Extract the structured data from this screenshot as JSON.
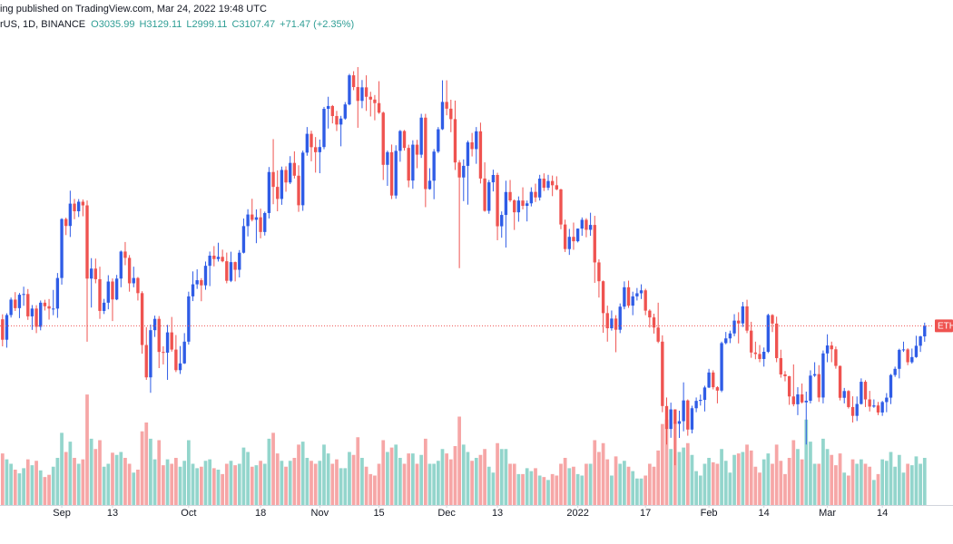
{
  "chart_data": {
    "type": "candlestick",
    "title": "ing published on TradingView.com, Mar 24, 2022 19:48 UTC",
    "symbol": "rUS, 1D, BINANCE",
    "ohlc_labels": [
      "O3035.99",
      "H3129.11",
      "L2999.11",
      "C3107.47",
      "+71.47 (+2.35%)"
    ],
    "price_label": "ETH",
    "up_color": "#2f5ce6",
    "down_color": "#ef5350",
    "volume_up_color": "#93d5cc",
    "volume_down_color": "#f6a6a6",
    "price_line_color": "#ef5350",
    "xlim": [
      -0.6,
      224.7
    ],
    "ylim": [
      1870,
      5090
    ],
    "vlim": [
      0,
      1600
    ],
    "xticks": [
      {
        "value": 14,
        "label": "Sep"
      },
      {
        "value": 26,
        "label": "13"
      },
      {
        "value": 44,
        "label": "Oct"
      },
      {
        "value": 61,
        "label": "18"
      },
      {
        "value": 75,
        "label": "Nov"
      },
      {
        "value": 89,
        "label": "15"
      },
      {
        "value": 105,
        "label": "Dec"
      },
      {
        "value": 117,
        "label": "13"
      },
      {
        "value": 136,
        "label": "2022"
      },
      {
        "value": 152,
        "label": "17"
      },
      {
        "value": 167,
        "label": "Feb"
      },
      {
        "value": 180,
        "label": "14"
      },
      {
        "value": 195,
        "label": "Mar"
      },
      {
        "value": 208,
        "label": "14"
      }
    ],
    "open": [
      3152,
      3013,
      3181,
      3286,
      3228,
      3319,
      3324,
      3172,
      3225,
      3101,
      3265,
      3241,
      3225,
      3225,
      3433,
      3834,
      3787,
      3939,
      3887,
      3952,
      3927,
      3429,
      3497,
      3425,
      3209,
      3265,
      3409,
      3287,
      3429,
      3613,
      3570,
      3397,
      3433,
      3330,
      2977,
      2757,
      3078,
      3155,
      2930,
      2925,
      3063,
      2946,
      2806,
      2852,
      3000,
      3308,
      3390,
      3418,
      3383,
      3516,
      3585,
      3562,
      3577,
      3547,
      3414,
      3541,
      3489,
      3605,
      3786,
      3865,
      3829,
      3846,
      3746,
      3875,
      4154,
      4053,
      3971,
      4168,
      4083,
      4216,
      4129,
      3928,
      4286,
      4414,
      4323,
      4289,
      4324,
      4584,
      4603,
      4535,
      4477,
      4518,
      4614,
      4812,
      4732,
      4638,
      4730,
      4666,
      4647,
      4623,
      4558,
      4203,
      4289,
      3994,
      4298,
      4433,
      4318,
      4096,
      4340,
      4272,
      4524,
      4038,
      4095,
      4293,
      4445,
      4631,
      4585,
      4514,
      4219,
      4117,
      4196,
      4356,
      4310,
      4431,
      4110,
      3890,
      4084,
      4134,
      3785,
      3862,
      4018,
      3961,
      3880,
      3960,
      3924,
      3941,
      4019,
      3981,
      4109,
      4047,
      4093,
      4064,
      4036,
      3797,
      3630,
      3713,
      3683,
      3769,
      3829,
      3761,
      3794,
      3539,
      3411,
      3194,
      3091,
      3157,
      3081,
      3238,
      3370,
      3245,
      3308,
      3329,
      3349,
      3211,
      3165,
      3096,
      3000,
      2562,
      2406,
      2539,
      2441,
      2459,
      2600,
      2402,
      2547,
      2597,
      2604,
      2688,
      2790,
      2690,
      2667,
      2990,
      3022,
      3056,
      3143,
      3124,
      3240,
      3075,
      2926,
      2916,
      2882,
      2931,
      3181,
      3123,
      2888,
      2777,
      2765,
      2627,
      2574,
      2641,
      2587,
      2598,
      2769,
      2779,
      2620,
      2920,
      2974,
      2948,
      2835,
      2618,
      2664,
      2555,
      2495,
      2576,
      2727,
      2607,
      2558,
      2566,
      2518,
      2589,
      2619,
      2773,
      2815,
      2944,
      2947,
      2860,
      2895,
      2972,
      3035.99
    ],
    "high": [
      3186,
      3193,
      3300,
      3337,
      3331,
      3374,
      3358,
      3249,
      3248,
      3280,
      3285,
      3290,
      3352,
      3467,
      3840,
      3844,
      4027,
      3971,
      3970,
      3967,
      3960,
      3568,
      3565,
      3510,
      3291,
      3452,
      3430,
      3454,
      3620,
      3678,
      3589,
      3510,
      3440,
      3343,
      3099,
      3116,
      3177,
      3174,
      2968,
      3114,
      3168,
      3045,
      2970,
      3058,
      3340,
      3478,
      3492,
      3432,
      3545,
      3613,
      3650,
      3673,
      3626,
      3606,
      3612,
      3545,
      3623,
      3838,
      3901,
      3972,
      3900,
      3905,
      3885,
      4188,
      4378,
      4165,
      4191,
      4193,
      4262,
      4295,
      4200,
      4300,
      4460,
      4435,
      4392,
      4375,
      4597,
      4666,
      4610,
      4570,
      4536,
      4630,
      4822,
      4840,
      4868,
      4780,
      4812,
      4700,
      4678,
      4772,
      4565,
      4300,
      4341,
      4336,
      4440,
      4440,
      4340,
      4370,
      4373,
      4550,
      4550,
      4180,
      4310,
      4460,
      4778,
      4778,
      4646,
      4640,
      4235,
      4240,
      4368,
      4420,
      4460,
      4490,
      4220,
      4100,
      4170,
      4149,
      3886,
      4095,
      4100,
      3968,
      3988,
      4050,
      3960,
      4050,
      4075,
      4135,
      4145,
      4135,
      4130,
      4125,
      4040,
      3830,
      3767,
      3810,
      3770,
      3845,
      3840,
      3877,
      3856,
      3560,
      3416,
      3245,
      3212,
      3180,
      3260,
      3410,
      3415,
      3340,
      3365,
      3390,
      3360,
      3220,
      3190,
      3265,
      3043,
      2620,
      2585,
      2540,
      2530,
      2723,
      2607,
      2564,
      2620,
      2640,
      2700,
      2815,
      2805,
      2697,
      3000,
      3066,
      3075,
      3187,
      3200,
      3270,
      3285,
      3135,
      3000,
      2977,
      2960,
      3190,
      3187,
      3170,
      2945,
      2800,
      2767,
      2845,
      2690,
      2715,
      2660,
      2805,
      2860,
      2840,
      2940,
      3050,
      3000,
      2967,
      2837,
      2685,
      2670,
      2628,
      2627,
      2750,
      2738,
      2665,
      2607,
      2590,
      2597,
      2650,
      2780,
      2830,
      2952,
      3000,
      2955,
      2953,
      3040,
      3040,
      3129.11
    ],
    "low": [
      2968,
      2959,
      3164,
      3209,
      3160,
      3244,
      3148,
      3080,
      3058,
      3077,
      3212,
      3150,
      3180,
      3162,
      3388,
      3725,
      3712,
      3833,
      3848,
      3853,
      3000,
      3232,
      3397,
      3155,
      3188,
      3220,
      3140,
      3282,
      3370,
      3520,
      3340,
      3370,
      3280,
      2918,
      2740,
      2652,
      3032,
      2820,
      2845,
      2740,
      2932,
      2793,
      2780,
      2848,
      2980,
      3276,
      3359,
      3275,
      3353,
      3378,
      3512,
      3545,
      3540,
      3397,
      3405,
      3410,
      3437,
      3600,
      3716,
      3818,
      3670,
      3703,
      3722,
      3838,
      3935,
      3887,
      3931,
      4020,
      4072,
      4110,
      3883,
      3890,
      4265,
      4227,
      4150,
      4146,
      4309,
      4450,
      4485,
      4433,
      4329,
      4510,
      4608,
      4711,
      4455,
      4588,
      4570,
      4532,
      4506,
      4550,
      4100,
      4060,
      3970,
      3972,
      4224,
      4300,
      4050,
      4040,
      4180,
      4250,
      3915,
      4034,
      3969,
      4283,
      4440,
      4540,
      4425,
      4168,
      3500,
      3956,
      3932,
      4260,
      4210,
      4076,
      3884,
      3870,
      4022,
      3690,
      3707,
      3640,
      3950,
      3760,
      3816,
      3900,
      3818,
      3920,
      3950,
      3960,
      4025,
      4030,
      3990,
      4030,
      3765,
      3610,
      3590,
      3625,
      3675,
      3720,
      3710,
      3720,
      3400,
      3300,
      3060,
      3000,
      3075,
      2928,
      3058,
      3220,
      3230,
      3180,
      3280,
      3290,
      3180,
      3096,
      3055,
      2990,
      2520,
      2300,
      2346,
      2159,
      2345,
      2390,
      2360,
      2376,
      2520,
      2565,
      2525,
      2684,
      2675,
      2580,
      2656,
      2982,
      2990,
      3037,
      2988,
      3100,
      3058,
      2890,
      2880,
      2860,
      2830,
      2922,
      3065,
      2860,
      2755,
      2730,
      2570,
      2560,
      2500,
      2580,
      2300,
      2580,
      2760,
      2590,
      2580,
      2860,
      2860,
      2816,
      2600,
      2580,
      2545,
      2450,
      2460,
      2572,
      2555,
      2525,
      2550,
      2500,
      2495,
      2520,
      2575,
      2760,
      2750,
      2930,
      2840,
      2850,
      2890,
      2930,
      2999.11
    ],
    "close": [
      3013,
      3181,
      3286,
      3228,
      3319,
      3324,
      3172,
      3225,
      3101,
      3265,
      3241,
      3225,
      3225,
      3433,
      3834,
      3787,
      3939,
      3887,
      3952,
      3927,
      3429,
      3497,
      3425,
      3209,
      3265,
      3409,
      3287,
      3429,
      3613,
      3570,
      3397,
      3433,
      3330,
      2977,
      2757,
      3078,
      3155,
      2930,
      2925,
      3063,
      2946,
      2806,
      2852,
      3000,
      3308,
      3390,
      3418,
      3383,
      3516,
      3585,
      3562,
      3577,
      3547,
      3414,
      3541,
      3489,
      3605,
      3786,
      3865,
      3829,
      3846,
      3746,
      3875,
      4154,
      4053,
      3971,
      4168,
      4083,
      4216,
      4129,
      3928,
      4286,
      4414,
      4323,
      4289,
      4324,
      4584,
      4603,
      4535,
      4477,
      4518,
      4614,
      4812,
      4732,
      4638,
      4730,
      4666,
      4647,
      4623,
      4558,
      4203,
      4289,
      3994,
      4298,
      4433,
      4318,
      4096,
      4340,
      4272,
      4524,
      4038,
      4095,
      4293,
      4445,
      4631,
      4585,
      4514,
      4219,
      4117,
      4196,
      4356,
      4310,
      4431,
      4110,
      3890,
      4084,
      4134,
      3785,
      3862,
      4018,
      3961,
      3880,
      3960,
      3924,
      3941,
      4019,
      3981,
      4109,
      4047,
      4093,
      4064,
      4036,
      3797,
      3630,
      3713,
      3683,
      3769,
      3829,
      3761,
      3794,
      3539,
      3411,
      3194,
      3091,
      3157,
      3081,
      3238,
      3370,
      3245,
      3308,
      3329,
      3349,
      3211,
      3165,
      3096,
      3000,
      2562,
      2406,
      2539,
      2441,
      2459,
      2600,
      2402,
      2547,
      2597,
      2604,
      2688,
      2790,
      2690,
      2667,
      2990,
      3022,
      3056,
      3143,
      3124,
      3240,
      3075,
      2926,
      2916,
      2882,
      2931,
      3181,
      3123,
      2888,
      2777,
      2765,
      2627,
      2574,
      2641,
      2587,
      2598,
      2769,
      2779,
      2620,
      2920,
      2974,
      2948,
      2835,
      2618,
      2664,
      2555,
      2495,
      2576,
      2727,
      2607,
      2558,
      2566,
      2518,
      2589,
      2619,
      2773,
      2815,
      2944,
      2947,
      2860,
      2895,
      2972,
      3036,
      3107.47
    ],
    "volume": [
      700,
      620,
      560,
      480,
      430,
      500,
      620,
      540,
      600,
      470,
      380,
      410,
      520,
      640,
      980,
      720,
      860,
      640,
      560,
      620,
      1500,
      900,
      760,
      880,
      520,
      560,
      710,
      680,
      720,
      640,
      560,
      440,
      480,
      1000,
      1120,
      900,
      620,
      880,
      540,
      620,
      560,
      640,
      520,
      600,
      880,
      560,
      500,
      520,
      600,
      620,
      500,
      480,
      420,
      560,
      600,
      540,
      560,
      780,
      720,
      520,
      540,
      600,
      560,
      900,
      980,
      700,
      600,
      520,
      600,
      640,
      820,
      860,
      640,
      600,
      560,
      600,
      820,
      700,
      560,
      620,
      500,
      500,
      720,
      680,
      920,
      640,
      520,
      420,
      400,
      560,
      880,
      720,
      780,
      820,
      640,
      560,
      700,
      700,
      560,
      680,
      900,
      560,
      560,
      600,
      760,
      700,
      620,
      800,
      1200,
      820,
      720,
      600,
      640,
      680,
      760,
      520,
      440,
      840,
      760,
      760,
      560,
      560,
      420,
      420,
      500,
      460,
      500,
      400,
      380,
      340,
      420,
      400,
      560,
      640,
      500,
      520,
      420,
      400,
      560,
      560,
      880,
      720,
      840,
      620,
      400,
      660,
      560,
      600,
      520,
      460,
      360,
      360,
      400,
      560,
      520,
      740,
      1100,
      1160,
      760,
      1120,
      720,
      780,
      840,
      680,
      460,
      400,
      560,
      640,
      580,
      560,
      760,
      600,
      440,
      680,
      700,
      720,
      820,
      740,
      520,
      440,
      620,
      700,
      560,
      820,
      600,
      420,
      640,
      880,
      760,
      620,
      1160,
      860,
      560,
      560,
      900,
      760,
      680,
      540,
      700,
      440,
      400,
      620,
      560,
      620,
      560,
      520,
      340,
      420,
      620,
      600,
      720,
      520,
      680,
      440,
      560,
      540,
      660,
      560,
      640
    ]
  }
}
